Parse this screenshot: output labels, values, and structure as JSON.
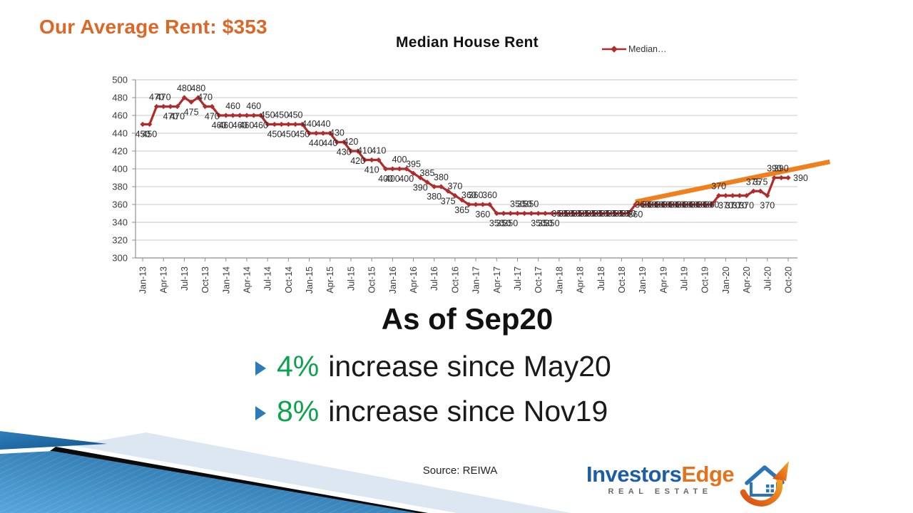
{
  "header": {
    "title": "Our Average Rent: $353"
  },
  "chart_data": {
    "type": "line",
    "title": "Median House Rent",
    "legend_label": "Median…",
    "legend_position": "top-right",
    "grid": "horizontal",
    "x_frequency": "monthly",
    "x_start": "Jan-13",
    "x_end": "Oct-20",
    "x_tick_labels": [
      "Jan-13",
      "Apr-13",
      "Jul-13",
      "Oct-13",
      "Jan-14",
      "Apr-14",
      "Jul-14",
      "Oct-14",
      "Jan-15",
      "Apr-15",
      "Jul-15",
      "Oct-15",
      "Jan-16",
      "Apr-16",
      "Jul-16",
      "Oct-16",
      "Jan-17",
      "Apr-17",
      "Jul-17",
      "Oct-17",
      "Jan-18",
      "Apr-18",
      "Jul-18",
      "Oct-18",
      "Jan-19",
      "Apr-19",
      "Jul-19",
      "Oct-19",
      "Jan-20",
      "Apr-20",
      "Jul-20",
      "Oct-20"
    ],
    "ylim": [
      300,
      500
    ],
    "ytick_step": 20,
    "values": [
      450,
      450,
      470,
      470,
      470,
      470,
      480,
      475,
      480,
      470,
      470,
      460,
      460,
      460,
      460,
      460,
      460,
      460,
      450,
      450,
      450,
      450,
      450,
      450,
      440,
      440,
      440,
      440,
      430,
      430,
      420,
      420,
      410,
      410,
      410,
      400,
      400,
      400,
      400,
      395,
      390,
      385,
      380,
      380,
      375,
      370,
      365,
      360,
      360,
      360,
      360,
      350,
      350,
      350,
      350,
      350,
      350,
      350,
      350,
      350,
      350,
      350,
      350,
      350,
      350,
      350,
      350,
      350,
      350,
      350,
      350,
      360,
      360,
      360,
      360,
      360,
      360,
      360,
      360,
      360,
      360,
      360,
      360,
      370,
      370,
      370,
      370,
      370,
      375,
      375,
      370,
      390,
      390,
      390
    ],
    "label_positions": "bbaabbabaabbbabbababababababababababbabababababaababbbaaabbbcccccccccccbcccccccccccabbbbaabaar",
    "line_color": "#B02C2C",
    "trend_arrow": {
      "color": "#F0801E",
      "x1_index": 71,
      "y1_value": 363,
      "x2_index": 99,
      "y2_value": 408
    }
  },
  "callout": {
    "heading": "As of Sep20",
    "bullets": [
      {
        "pct": "4%",
        "text": "increase since May20"
      },
      {
        "pct": "8%",
        "text": "increase since Nov19"
      }
    ]
  },
  "footer": {
    "source": "Source: REIWA",
    "logo": {
      "name_part1": "Investors",
      "name_part2": "Edge",
      "subtitle": "REAL ESTATE"
    }
  },
  "colors": {
    "title_orange": "#DD6727",
    "bullet_green": "#0CA34E",
    "bullet_blue": "#2B7BBB",
    "arrow_orange": "#F0801E",
    "line_red": "#B02C2C",
    "logo_blue": "#1D5DA8",
    "logo_orange": "#E4711C",
    "deco_blue_dark": "#1D6299",
    "deco_blue_light": "#57A7DC",
    "deco_pale": "#DDE7F2"
  }
}
